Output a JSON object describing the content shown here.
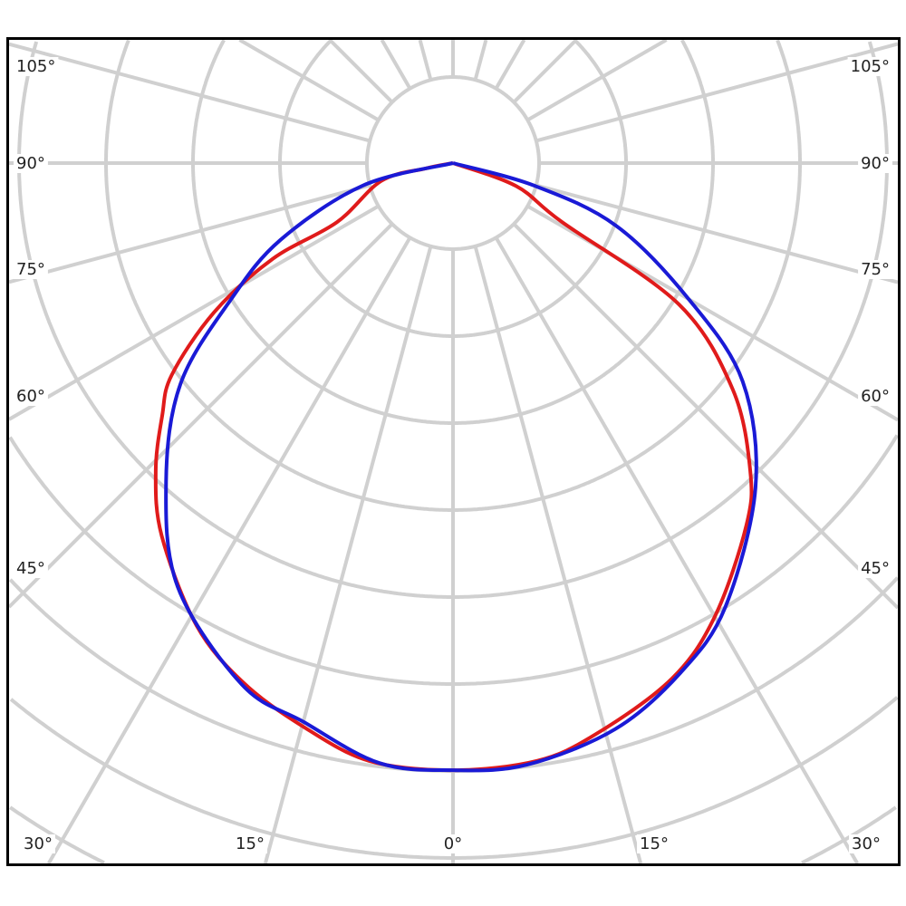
{
  "chart_data": {
    "type": "line",
    "subtype": "polar-photometric",
    "title": "",
    "angle_labels_left": [
      "105°",
      "90°",
      "75°",
      "60°",
      "45°"
    ],
    "angle_labels_right": [
      "105°",
      "90°",
      "75°",
      "60°",
      "45°"
    ],
    "angle_labels_bottom": [
      "30°",
      "15°",
      "0°",
      "15°",
      "30°"
    ],
    "angle_grid_step_deg": 15,
    "radial_grid_labeled": false,
    "radial_unit": "relative (grid rings)",
    "grid": true,
    "series": [
      {
        "color": "#e01b1b",
        "points_angle_deg_r": [
          [
            -90,
            0
          ],
          [
            -79,
            0.32
          ],
          [
            -76,
            0.85
          ],
          [
            -63,
            1.5
          ],
          [
            -62,
            2.35
          ],
          [
            -58,
            3.24
          ],
          [
            -53,
            4.05
          ],
          [
            -49,
            4.43
          ],
          [
            -44,
            4.92
          ],
          [
            -38,
            5.44
          ],
          [
            -29,
            6.08
          ],
          [
            -22,
            6.44
          ],
          [
            -15,
            6.7
          ],
          [
            -8,
            6.94
          ],
          [
            0,
            6.98
          ],
          [
            8,
            6.94
          ],
          [
            14,
            6.77
          ],
          [
            23,
            6.44
          ],
          [
            30,
            6.02
          ],
          [
            39,
            5.36
          ],
          [
            44,
            4.92
          ],
          [
            51,
            4.14
          ],
          [
            58,
            3.06
          ],
          [
            61.6,
            1.42
          ],
          [
            70,
            0.77
          ],
          [
            90,
            0
          ]
        ]
      },
      {
        "color": "#1a1ad6",
        "points_angle_deg_r": [
          [
            -90,
            0
          ],
          [
            -76,
            1.07
          ],
          [
            -66,
            2.17
          ],
          [
            -58.5,
            2.99
          ],
          [
            -51,
            4.03
          ],
          [
            -42,
            4.93
          ],
          [
            -33,
            5.81
          ],
          [
            -22,
            6.47
          ],
          [
            -15,
            6.65
          ],
          [
            -7,
            6.95
          ],
          [
            0,
            6.98
          ],
          [
            7,
            6.97
          ],
          [
            16,
            6.77
          ],
          [
            24,
            6.42
          ],
          [
            31.5,
            5.99
          ],
          [
            43,
            5.1
          ],
          [
            53,
            4.17
          ],
          [
            60,
            3.13
          ],
          [
            69,
            2.01
          ],
          [
            74.5,
            0.97
          ],
          [
            90,
            0
          ]
        ]
      }
    ]
  },
  "colors": {
    "grid": "#d0d0d0",
    "frame": "#000000"
  }
}
